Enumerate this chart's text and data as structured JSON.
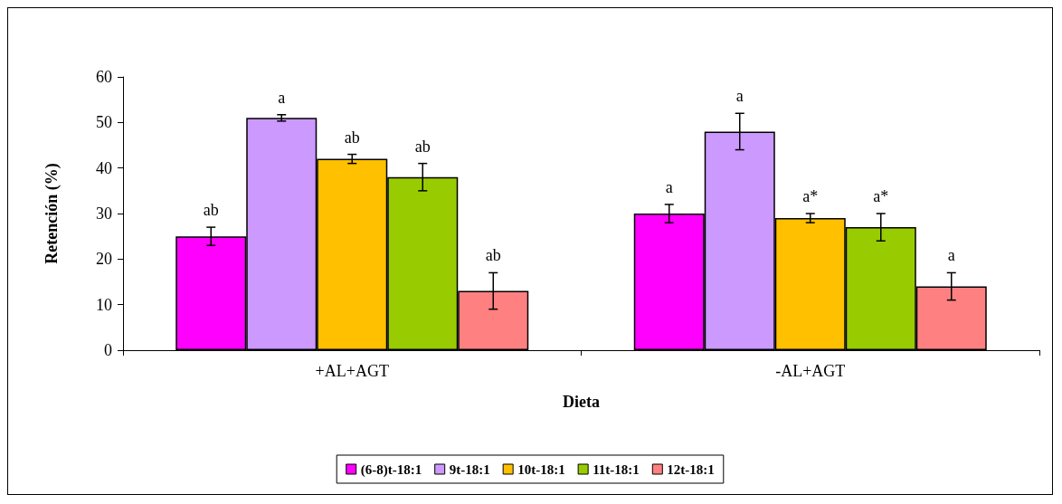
{
  "chart_data": {
    "type": "bar",
    "xlabel": "Dieta",
    "ylabel": "Retención (%)",
    "categories": [
      "+AL+AGT",
      "-AL+AGT"
    ],
    "ylim": [
      0,
      60
    ],
    "yticks": [
      0,
      10,
      20,
      30,
      40,
      50,
      60
    ],
    "grid": false,
    "legend": "bottom",
    "series": [
      {
        "name": "(6-8)t-18:1",
        "color": "#ff00ff",
        "values": [
          25,
          30
        ],
        "errors": [
          2,
          2
        ],
        "value_labels": [
          "ab",
          "a"
        ]
      },
      {
        "name": "9t-18:1",
        "color": "#cc99ff",
        "values": [
          51,
          48
        ],
        "errors": [
          0.7,
          4
        ],
        "value_labels": [
          "a",
          "a"
        ]
      },
      {
        "name": "10t-18:1",
        "color": "#ffc000",
        "values": [
          42,
          29
        ],
        "errors": [
          1,
          1
        ],
        "value_labels": [
          "ab",
          "a*"
        ]
      },
      {
        "name": "11t-18:1",
        "color": "#99cc00",
        "values": [
          38,
          27
        ],
        "errors": [
          3,
          3
        ],
        "value_labels": [
          "ab",
          "a*"
        ]
      },
      {
        "name": "12t-18:1",
        "color": "#ff8080",
        "values": [
          13,
          14
        ],
        "errors": [
          4,
          3
        ],
        "value_labels": [
          "ab",
          "a"
        ]
      }
    ]
  }
}
